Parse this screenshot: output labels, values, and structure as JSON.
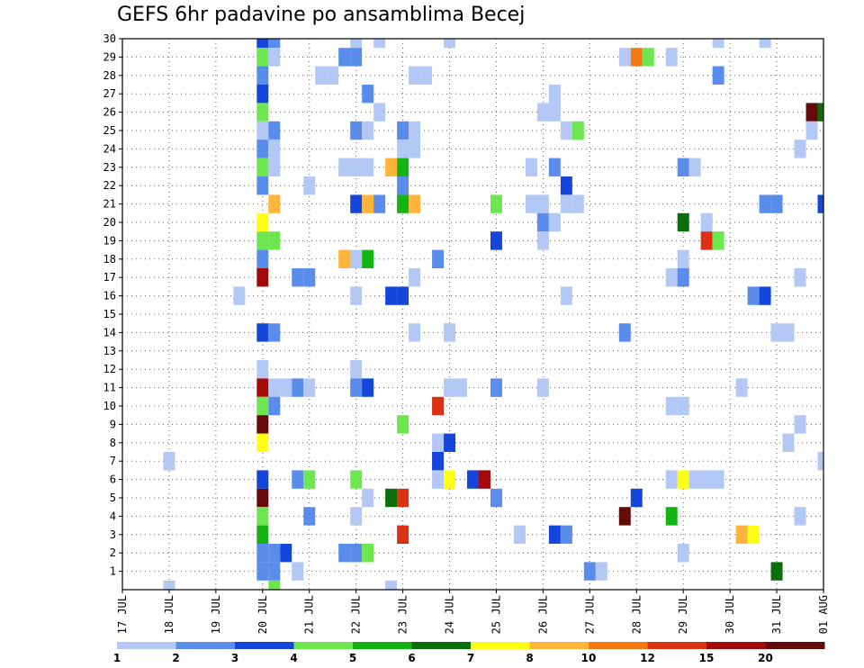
{
  "chart_data": {
    "type": "heatmap",
    "title": "GEFS 6hr padavine po ansamblima Becej",
    "xlabel": "",
    "ylabel": "",
    "x_tick_labels": [
      "17 JUL",
      "18 JUL",
      "19 JUL",
      "20 JUL",
      "21 JUL",
      "22 JUL",
      "23 JUL",
      "24 JUL",
      "25 JUL",
      "26 JUL",
      "27 JUL",
      "28 JUL",
      "29 JUL",
      "30 JUL",
      "31 JUL",
      "01 AUG"
    ],
    "y_tick_labels": [
      "1",
      "2",
      "3",
      "4",
      "5",
      "6",
      "7",
      "8",
      "9",
      "10",
      "11",
      "12",
      "13",
      "14",
      "15",
      "16",
      "17",
      "18",
      "19",
      "20",
      "21",
      "22",
      "23",
      "24",
      "25",
      "26",
      "27",
      "28",
      "29",
      "30"
    ],
    "x_range_days": [
      0,
      15
    ],
    "y_range": [
      0,
      30
    ],
    "grid": true,
    "colorbar": {
      "levels": [
        "1",
        "2",
        "3",
        "4",
        "5",
        "6",
        "7",
        "8",
        "10",
        "12",
        "15",
        "20"
      ],
      "colors": [
        "#b4c8f5",
        "#5a8ceb",
        "#1446dc",
        "#6ee650",
        "#14b414",
        "#0a6e0a",
        "#ffff14",
        "#ffb43c",
        "#f57814",
        "#dc3214",
        "#a50a0a",
        "#640a0a"
      ]
    },
    "bins_note": "value = colour bin index (1..12) of colorbar.colors",
    "cells": [
      [
        30,
        3.0,
        3
      ],
      [
        30,
        3.25,
        2
      ],
      [
        30,
        5.0,
        1
      ],
      [
        30,
        5.5,
        1
      ],
      [
        30,
        7.0,
        1
      ],
      [
        30,
        12.75,
        1
      ],
      [
        30,
        13.75,
        1
      ],
      [
        29,
        3.0,
        4
      ],
      [
        29,
        3.25,
        1
      ],
      [
        29,
        4.75,
        2
      ],
      [
        29,
        5.0,
        2
      ],
      [
        29,
        10.75,
        1
      ],
      [
        29,
        11.0,
        9
      ],
      [
        29,
        11.25,
        4
      ],
      [
        29,
        11.75,
        1
      ],
      [
        28,
        3.0,
        2
      ],
      [
        28,
        4.25,
        1
      ],
      [
        28,
        4.5,
        1
      ],
      [
        28,
        6.25,
        1
      ],
      [
        28,
        6.5,
        1
      ],
      [
        28,
        12.75,
        2
      ],
      [
        27,
        3.0,
        3
      ],
      [
        27,
        5.25,
        2
      ],
      [
        27,
        9.25,
        1
      ],
      [
        26,
        3.0,
        4
      ],
      [
        26,
        5.5,
        1
      ],
      [
        26,
        9.0,
        1
      ],
      [
        26,
        9.25,
        1
      ],
      [
        26,
        14.75,
        12
      ],
      [
        26,
        15.0,
        6
      ],
      [
        25,
        3.0,
        1
      ],
      [
        25,
        3.25,
        2
      ],
      [
        25,
        5.0,
        2
      ],
      [
        25,
        5.25,
        1
      ],
      [
        25,
        6.0,
        2
      ],
      [
        25,
        6.25,
        1
      ],
      [
        25,
        9.5,
        1
      ],
      [
        25,
        9.75,
        4
      ],
      [
        25,
        14.75,
        1
      ],
      [
        24,
        3.0,
        2
      ],
      [
        24,
        3.25,
        1
      ],
      [
        24,
        6.0,
        1
      ],
      [
        24,
        6.25,
        1
      ],
      [
        24,
        14.5,
        1
      ],
      [
        23,
        3.0,
        4
      ],
      [
        23,
        3.25,
        1
      ],
      [
        23,
        4.75,
        1
      ],
      [
        23,
        5.0,
        1
      ],
      [
        23,
        5.25,
        1
      ],
      [
        23,
        5.75,
        8
      ],
      [
        23,
        6.0,
        5
      ],
      [
        23,
        8.75,
        1
      ],
      [
        23,
        9.25,
        2
      ],
      [
        23,
        12.0,
        2
      ],
      [
        23,
        12.25,
        1
      ],
      [
        22,
        3.0,
        2
      ],
      [
        22,
        4.0,
        1
      ],
      [
        22,
        6.0,
        2
      ],
      [
        22,
        9.5,
        3
      ],
      [
        21,
        3.25,
        8
      ],
      [
        21,
        5.0,
        3
      ],
      [
        21,
        5.25,
        8
      ],
      [
        21,
        5.5,
        2
      ],
      [
        21,
        6.0,
        5
      ],
      [
        21,
        6.25,
        8
      ],
      [
        21,
        8.0,
        4
      ],
      [
        21,
        8.75,
        1
      ],
      [
        21,
        9.0,
        1
      ],
      [
        21,
        9.5,
        1
      ],
      [
        21,
        9.75,
        1
      ],
      [
        21,
        13.75,
        2
      ],
      [
        21,
        14.0,
        2
      ],
      [
        21,
        15.0,
        3
      ],
      [
        20,
        3.0,
        7
      ],
      [
        20,
        9.0,
        2
      ],
      [
        20,
        9.25,
        1
      ],
      [
        20,
        12.0,
        6
      ],
      [
        20,
        12.5,
        1
      ],
      [
        19,
        3.0,
        4
      ],
      [
        19,
        3.25,
        4
      ],
      [
        19,
        8.0,
        3
      ],
      [
        19,
        9.0,
        1
      ],
      [
        19,
        12.5,
        10
      ],
      [
        19,
        12.75,
        4
      ],
      [
        18,
        3.0,
        2
      ],
      [
        18,
        4.75,
        8
      ],
      [
        18,
        5.0,
        1
      ],
      [
        18,
        5.25,
        5
      ],
      [
        18,
        6.75,
        2
      ],
      [
        18,
        12.0,
        1
      ],
      [
        17,
        3.0,
        11
      ],
      [
        17,
        3.75,
        2
      ],
      [
        17,
        4.0,
        2
      ],
      [
        17,
        6.25,
        1
      ],
      [
        17,
        11.75,
        1
      ],
      [
        17,
        12.0,
        2
      ],
      [
        17,
        14.5,
        1
      ],
      [
        16,
        2.5,
        1
      ],
      [
        16,
        5.0,
        1
      ],
      [
        16,
        5.75,
        3
      ],
      [
        16,
        6.0,
        3
      ],
      [
        16,
        9.5,
        1
      ],
      [
        16,
        13.5,
        2
      ],
      [
        16,
        13.75,
        3
      ],
      [
        14,
        3.0,
        3
      ],
      [
        14,
        3.25,
        2
      ],
      [
        14,
        6.25,
        1
      ],
      [
        14,
        7.0,
        1
      ],
      [
        14,
        10.75,
        2
      ],
      [
        14,
        14.0,
        1
      ],
      [
        14,
        14.25,
        1
      ],
      [
        12,
        3.0,
        1
      ],
      [
        12,
        5.0,
        1
      ],
      [
        11,
        3.0,
        11
      ],
      [
        11,
        3.25,
        1
      ],
      [
        11,
        3.5,
        1
      ],
      [
        11,
        3.75,
        2
      ],
      [
        11,
        4.0,
        1
      ],
      [
        11,
        5.0,
        2
      ],
      [
        11,
        5.25,
        3
      ],
      [
        11,
        7.0,
        1
      ],
      [
        11,
        7.25,
        1
      ],
      [
        11,
        8.0,
        2
      ],
      [
        11,
        9.0,
        1
      ],
      [
        11,
        13.25,
        1
      ],
      [
        10,
        3.0,
        4
      ],
      [
        10,
        3.25,
        2
      ],
      [
        10,
        6.75,
        10
      ],
      [
        10,
        11.75,
        1
      ],
      [
        10,
        12.0,
        1
      ],
      [
        9,
        3.0,
        12
      ],
      [
        9,
        6.0,
        4
      ],
      [
        9,
        14.5,
        1
      ],
      [
        8,
        3.0,
        7
      ],
      [
        8,
        6.75,
        1
      ],
      [
        8,
        7.0,
        3
      ],
      [
        8,
        14.25,
        1
      ],
      [
        7,
        1.0,
        1
      ],
      [
        7,
        6.75,
        3
      ],
      [
        7,
        15.0,
        1
      ],
      [
        6,
        3.0,
        3
      ],
      [
        6,
        3.75,
        2
      ],
      [
        6,
        4.0,
        4
      ],
      [
        6,
        5.0,
        4
      ],
      [
        6,
        6.75,
        1
      ],
      [
        6,
        7.0,
        7
      ],
      [
        6,
        7.5,
        3
      ],
      [
        6,
        7.75,
        11
      ],
      [
        6,
        11.75,
        1
      ],
      [
        6,
        12.0,
        7
      ],
      [
        6,
        12.25,
        1
      ],
      [
        6,
        12.5,
        1
      ],
      [
        6,
        12.75,
        1
      ],
      [
        5,
        3.0,
        12
      ],
      [
        5,
        5.25,
        1
      ],
      [
        5,
        5.75,
        6
      ],
      [
        5,
        6.0,
        10
      ],
      [
        5,
        8.0,
        2
      ],
      [
        5,
        11.0,
        3
      ],
      [
        4,
        3.0,
        4
      ],
      [
        4,
        4.0,
        2
      ],
      [
        4,
        5.0,
        1
      ],
      [
        4,
        10.75,
        12
      ],
      [
        4,
        11.75,
        5
      ],
      [
        4,
        14.5,
        1
      ],
      [
        3,
        3.0,
        5
      ],
      [
        3,
        6.0,
        10
      ],
      [
        3,
        8.5,
        1
      ],
      [
        3,
        9.25,
        3
      ],
      [
        3,
        9.5,
        2
      ],
      [
        3,
        13.25,
        8
      ],
      [
        3,
        13.5,
        7
      ],
      [
        2,
        3.0,
        2
      ],
      [
        2,
        3.25,
        2
      ],
      [
        2,
        3.5,
        3
      ],
      [
        2,
        4.75,
        2
      ],
      [
        2,
        5.0,
        2
      ],
      [
        2,
        5.25,
        4
      ],
      [
        2,
        12.0,
        1
      ],
      [
        1,
        3.0,
        2
      ],
      [
        1,
        3.25,
        2
      ],
      [
        1,
        3.75,
        1
      ],
      [
        1,
        10.0,
        2
      ],
      [
        1,
        10.25,
        1
      ],
      [
        1,
        14.0,
        6
      ],
      [
        0,
        1.0,
        1
      ],
      [
        0,
        3.25,
        4
      ],
      [
        0,
        5.75,
        1
      ]
    ]
  }
}
